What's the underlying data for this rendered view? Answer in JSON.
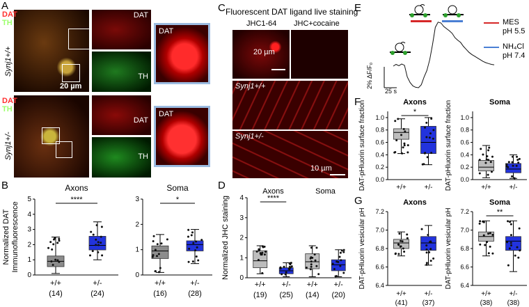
{
  "panels": {
    "A": {
      "letter": "A",
      "rows": [
        {
          "genotype": "Synj1+/+",
          "label_dat": "DAT",
          "label_th": "TH",
          "inset_dat": "DAT",
          "inset_th": "TH",
          "zoom": "DAT",
          "scale": "20 µm"
        },
        {
          "genotype": "Synj1+/-",
          "label_dat": "DAT",
          "label_th": "TH",
          "inset_dat": "DAT",
          "inset_th": "TH",
          "zoom": "DAT"
        }
      ]
    },
    "B": {
      "letter": "B"
    },
    "C": {
      "letter": "C",
      "title": "Fluorescent DAT ligand live staining",
      "col1": "JHC1-64",
      "col2": "JHC+cocaine",
      "scale_top": "20 µm",
      "row2": "Synj1+/+",
      "row3": "Synj1+/-",
      "scale_bottom": "10 µm"
    },
    "D": {
      "letter": "D"
    },
    "E": {
      "letter": "E",
      "legend": [
        {
          "line1": "MES",
          "line2": "pH 5.5",
          "color": "#d62728"
        },
        {
          "line1": "NH₄Cl",
          "line2": "pH 7.4",
          "color": "#4a7fd4"
        }
      ],
      "scale_y": "2% ΔF/F₀",
      "scale_x": "25 s"
    },
    "F": {
      "letter": "F"
    },
    "G": {
      "letter": "G"
    }
  },
  "chart_data": [
    {
      "id": "B-axons",
      "type": "box",
      "title": "Axons",
      "ylabel": "Normalized DAT Immunofluorescence",
      "ylim": [
        0,
        5
      ],
      "yticks": [
        0,
        1,
        2,
        3,
        4,
        5
      ],
      "categories": [
        "+/+",
        "+/-"
      ],
      "counts": [
        "(14)",
        "(24)"
      ],
      "significance": "****",
      "boxes": [
        {
          "q1": 0.55,
          "median": 0.9,
          "q3": 1.25,
          "whislo": 0.1,
          "whishi": 2.5,
          "color": "#8c8c8c"
        },
        {
          "q1": 1.65,
          "median": 1.95,
          "q3": 2.55,
          "whislo": 1.0,
          "whishi": 3.5,
          "color": "#2233dd"
        }
      ]
    },
    {
      "id": "B-soma",
      "type": "box",
      "title": "Soma",
      "ylabel": "",
      "ylim": [
        0,
        3
      ],
      "yticks": [
        0,
        1,
        2,
        3
      ],
      "categories": [
        "+/+",
        "+/-"
      ],
      "counts": [
        "(16)",
        "(28)"
      ],
      "significance": "*",
      "boxes": [
        {
          "q1": 0.65,
          "median": 0.95,
          "q3": 1.15,
          "whislo": 0.1,
          "whishi": 1.6,
          "color": "#8c8c8c"
        },
        {
          "q1": 0.95,
          "median": 1.2,
          "q3": 1.35,
          "whislo": 0.45,
          "whishi": 1.8,
          "color": "#2233dd"
        }
      ]
    },
    {
      "id": "D",
      "type": "box",
      "title": "",
      "ylabel": "Normalized JHC staining",
      "ylim": [
        0,
        4
      ],
      "yticks": [
        0,
        1,
        2,
        3,
        4
      ],
      "categories": [
        "+/+",
        "+/-",
        "+/+",
        "+/-"
      ],
      "counts": [
        "(19)",
        "(25)",
        "(14)",
        "(20)"
      ],
      "group_labels": [
        "Axons",
        "Soma"
      ],
      "significance": "****",
      "boxes": [
        {
          "q1": 0.5,
          "median": 0.85,
          "q3": 1.35,
          "whislo": 0.2,
          "whishi": 1.6,
          "color": "#bdbdbd"
        },
        {
          "q1": 0.2,
          "median": 0.35,
          "q3": 0.5,
          "whislo": 0.05,
          "whishi": 0.75,
          "color": "#2233dd"
        },
        {
          "q1": 0.45,
          "median": 0.8,
          "q3": 1.2,
          "whislo": 0.05,
          "whishi": 1.6,
          "color": "#bdbdbd"
        },
        {
          "q1": 0.35,
          "median": 0.65,
          "q3": 0.9,
          "whislo": 0.05,
          "whishi": 1.4,
          "color": "#2233dd"
        }
      ]
    },
    {
      "id": "E",
      "type": "line",
      "x": [
        0,
        5,
        10,
        15,
        20,
        25,
        30,
        35,
        40,
        45,
        50,
        55,
        60,
        65,
        70,
        75,
        80,
        85,
        90,
        95,
        100,
        105,
        110,
        115,
        120,
        125,
        130,
        135,
        140,
        145,
        150,
        155,
        160,
        165,
        170,
        175,
        180
      ],
      "y": [
        0,
        0.4,
        0.1,
        0.5,
        0.2,
        -2.5,
        -3.8,
        -4.6,
        -4.9,
        -5.0,
        -4.3,
        -2.5,
        -1.0,
        1.5,
        5.0,
        9.0,
        10.2,
        10.0,
        9.2,
        8.7,
        8.2,
        7.6,
        6.6,
        6.0,
        5.5,
        4.6,
        3.9,
        3.2,
        2.7,
        2.3,
        1.9,
        1.5,
        1.1,
        0.8,
        0.6,
        0.4,
        0.3
      ]
    },
    {
      "id": "F-axons",
      "type": "box",
      "title": "Axons",
      "ylabel": "DAT-pHluorin surface fraction",
      "ylim": [
        0,
        1.1
      ],
      "yticks": [
        0.0,
        0.2,
        0.4,
        0.6,
        0.8,
        1.0
      ],
      "categories": [
        "+/+",
        "+/-"
      ],
      "significance": "*",
      "boxes": [
        {
          "q1": 0.65,
          "median": 0.76,
          "q3": 0.82,
          "whislo": 0.42,
          "whishi": 0.98,
          "color": "#bdbdbd"
        },
        {
          "q1": 0.42,
          "median": 0.6,
          "q3": 0.86,
          "whislo": 0.24,
          "whishi": 1.0,
          "color": "#2233dd"
        }
      ]
    },
    {
      "id": "F-soma",
      "type": "box",
      "title": "Soma",
      "ylabel": "DAT-pHluorin surface fraction",
      "ylim": [
        0,
        1.1
      ],
      "yticks": [
        0.0,
        0.2,
        0.4,
        0.6,
        0.8,
        1.0
      ],
      "categories": [
        "+/+",
        "+/-"
      ],
      "boxes": [
        {
          "q1": 0.14,
          "median": 0.2,
          "q3": 0.31,
          "whislo": 0.03,
          "whishi": 0.55,
          "color": "#bdbdbd"
        },
        {
          "q1": 0.11,
          "median": 0.17,
          "q3": 0.26,
          "whislo": 0.02,
          "whishi": 0.4,
          "color": "#2233dd"
        }
      ]
    },
    {
      "id": "G-axons",
      "type": "box",
      "title": "Axons",
      "ylabel": "DAT-pHluorin vesicular pH",
      "ylim": [
        6.4,
        7.2
      ],
      "yticks": [
        6.4,
        6.6,
        6.8,
        7.0,
        7.2
      ],
      "categories": [
        "+/+",
        "+/-"
      ],
      "counts": [
        "(41)",
        "(37)"
      ],
      "boxes": [
        {
          "q1": 6.8,
          "median": 6.86,
          "q3": 6.9,
          "whislo": 6.72,
          "whishi": 6.98,
          "color": "#bdbdbd"
        },
        {
          "q1": 6.78,
          "median": 6.86,
          "q3": 6.93,
          "whislo": 6.62,
          "whishi": 7.05,
          "color": "#2233dd"
        }
      ]
    },
    {
      "id": "G-soma",
      "type": "box",
      "title": "Soma",
      "ylabel": "DAT-pHluorin vesicular pH",
      "ylim": [
        6.4,
        7.2
      ],
      "yticks": [
        6.4,
        6.6,
        6.8,
        7.0,
        7.2
      ],
      "categories": [
        "+/+",
        "+/-"
      ],
      "counts": [
        "(38)",
        "(38)"
      ],
      "significance": "**",
      "boxes": [
        {
          "q1": 6.88,
          "median": 6.93,
          "q3": 6.98,
          "whislo": 6.72,
          "whishi": 7.1,
          "color": "#bdbdbd"
        },
        {
          "q1": 6.78,
          "median": 6.88,
          "q3": 6.93,
          "whislo": 6.55,
          "whishi": 7.1,
          "color": "#2233dd"
        }
      ]
    }
  ]
}
